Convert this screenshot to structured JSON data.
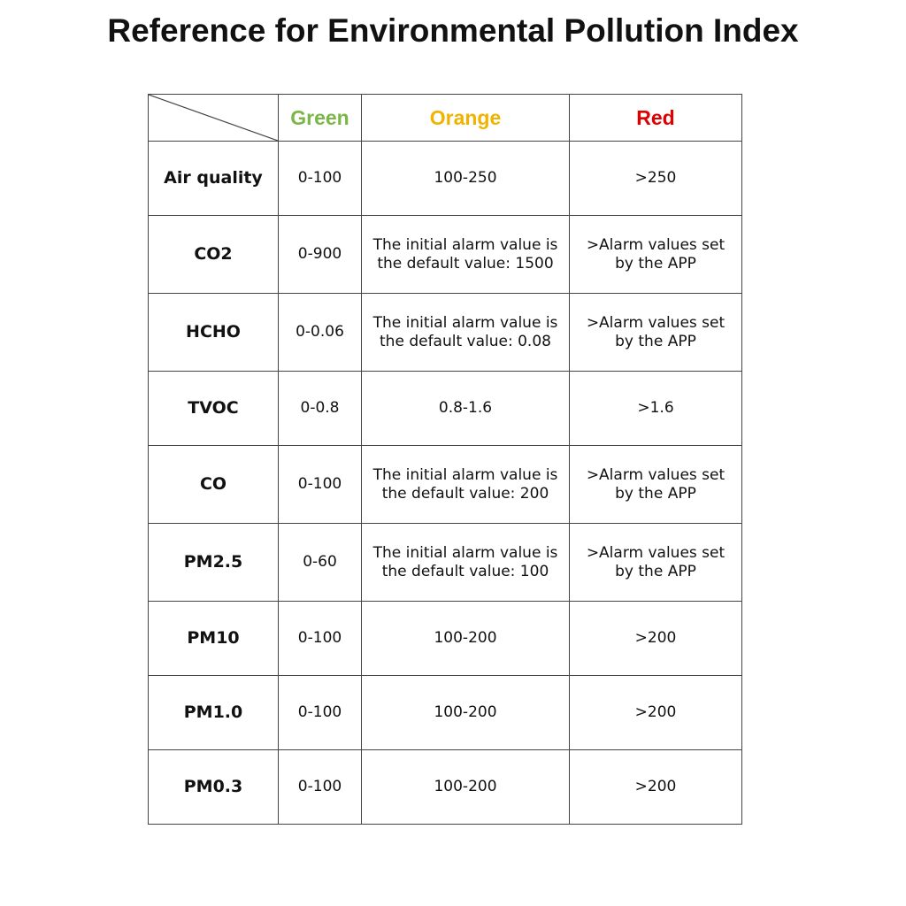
{
  "header": {
    "title": "Reference for Environmental Pollution Index"
  },
  "table": {
    "columns": [
      "Green",
      "Orange",
      "Red"
    ],
    "rows": [
      [
        "Air quality",
        "0-100",
        "100-250",
        ">250"
      ],
      [
        "CO2",
        "0-900",
        "The initial alarm value is the default value: 1500",
        ">Alarm values set by the APP"
      ],
      [
        "HCHO",
        "0-0.06",
        "The initial alarm value is the default value: 0.08",
        ">Alarm values set by the APP"
      ],
      [
        "TVOC",
        "0-0.8",
        "0.8-1.6",
        ">1.6"
      ],
      [
        "CO",
        "0-100",
        "The initial alarm value is the default value: 200",
        ">Alarm values set by the APP"
      ],
      [
        "PM2.5",
        "0-60",
        "The initial alarm value is the default value: 100",
        ">Alarm values set by the APP"
      ],
      [
        "PM10",
        "0-100",
        "100-200",
        ">200"
      ],
      [
        "PM1.0",
        "0-100",
        "100-200",
        ">200"
      ],
      [
        "PM0.3",
        "0-100",
        "100-200",
        ">200"
      ]
    ]
  }
}
